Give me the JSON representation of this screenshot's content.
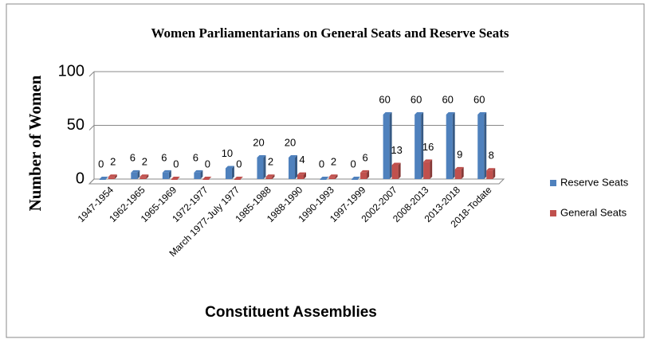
{
  "chart_data": {
    "type": "bar",
    "title": "Women Parliamentarians on General Seats and Reserve Seats",
    "y_axis_label": "Number of Women",
    "x_axis_label": "Constituent Assemblies",
    "categories": [
      "1947-1954",
      "1962-1965",
      "1965-1969",
      "1972-1977",
      "March 1977-July 1977",
      "1985-1988",
      "1988-1990",
      "1990-1993",
      "1997-1999",
      "2002-2007",
      "2008-2013",
      "2013-2018",
      "2018-Todate"
    ],
    "series": [
      {
        "name": "Reserve Seats",
        "color": "#4f81bd",
        "values": [
          0,
          6,
          6,
          6,
          10,
          20,
          20,
          0,
          0,
          60,
          60,
          60,
          60
        ]
      },
      {
        "name": "General Seats",
        "color": "#c0504d",
        "values": [
          2,
          2,
          0,
          0,
          0,
          2,
          4,
          2,
          6,
          13,
          16,
          9,
          8
        ]
      }
    ],
    "ylim": [
      0,
      100
    ],
    "yticks": [
      0,
      50,
      100
    ],
    "grid": true,
    "legend": "right"
  }
}
